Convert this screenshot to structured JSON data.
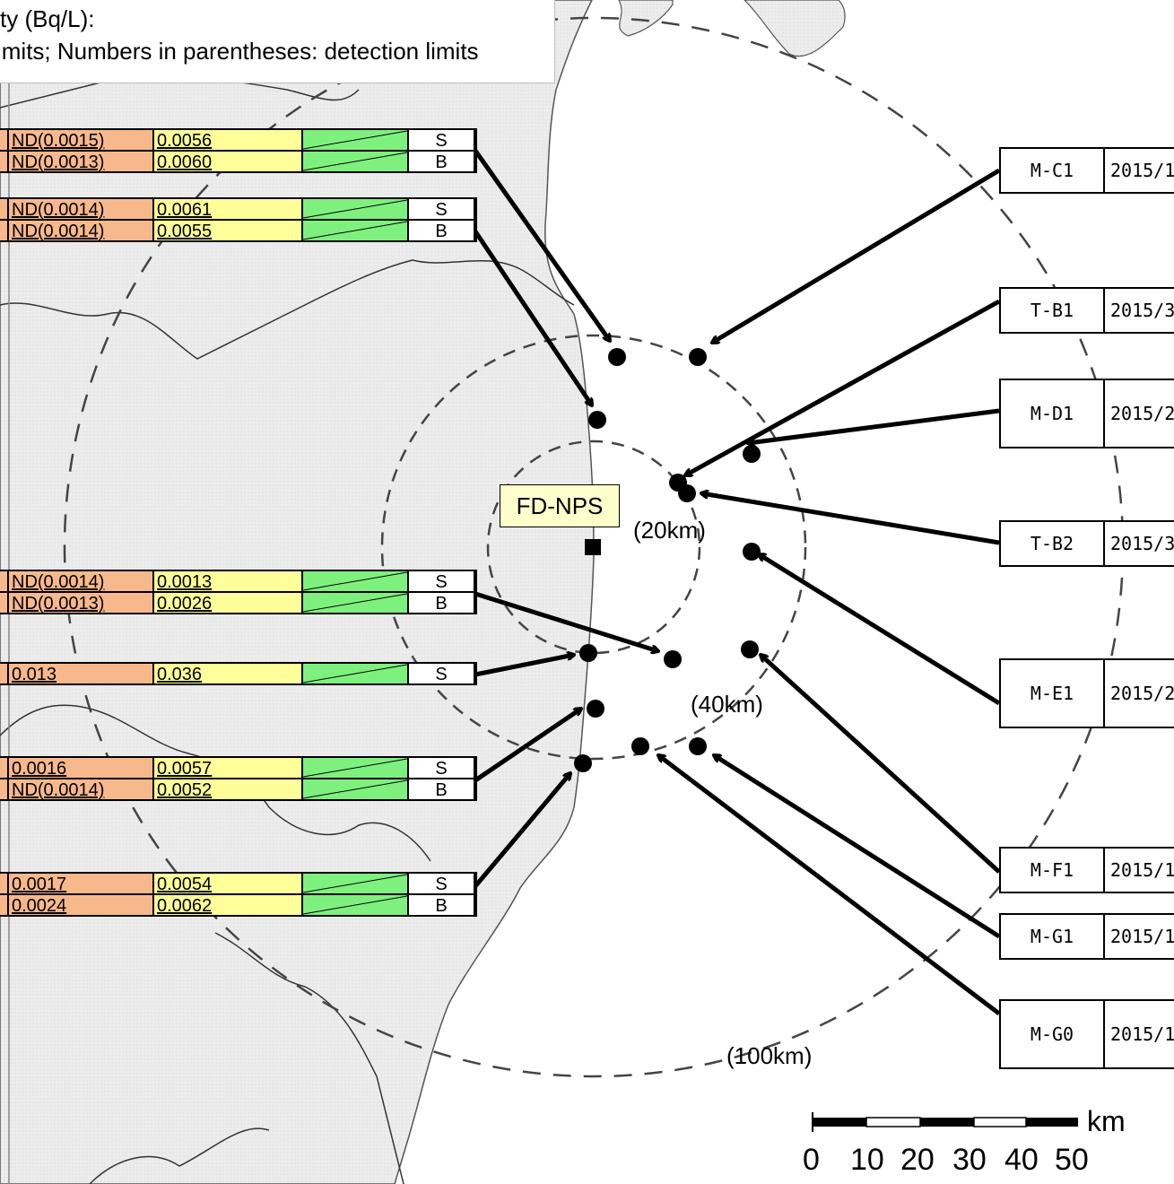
{
  "legend": {
    "line1": "ty (Bq/L):",
    "line2": "imits;    Numbers in parentheses: detection limits"
  },
  "plant": {
    "label": "FD-NPS"
  },
  "rings": [
    "(20km)",
    "(40km)",
    "(100km)"
  ],
  "scale": {
    "unit": "km",
    "ticks": [
      "0",
      "10",
      "20",
      "30",
      "40",
      "50"
    ]
  },
  "left_tables": [
    {
      "rows": [
        {
          "a": "ND(0.0015)",
          "b": "0.0056",
          "layer": "S"
        },
        {
          "a": "ND(0.0013)",
          "b": "0.0060",
          "layer": "B"
        }
      ]
    },
    {
      "rows": [
        {
          "a": "ND(0.0014)",
          "b": "0.0061",
          "layer": "S"
        },
        {
          "a": "ND(0.0014)",
          "b": "0.0055",
          "layer": "B"
        }
      ]
    },
    {
      "rows": [
        {
          "a": "ND(0.0014)",
          "b": "0.0013",
          "layer": "S"
        },
        {
          "a": "ND(0.0013)",
          "b": "0.0026",
          "layer": "B"
        }
      ]
    },
    {
      "rows": [
        {
          "a": "0.013",
          "b": "0.036",
          "layer": "S"
        }
      ]
    },
    {
      "rows": [
        {
          "a": "0.0016",
          "b": "0.0057",
          "layer": "S"
        },
        {
          "a": "ND(0.0014)",
          "b": "0.0052",
          "layer": "B"
        }
      ]
    },
    {
      "rows": [
        {
          "a": "0.0017",
          "b": "0.0054",
          "layer": "S"
        },
        {
          "a": "0.0024",
          "b": "0.0062",
          "layer": "B"
        }
      ]
    }
  ],
  "stations": [
    {
      "id": "M-C1",
      "date": "2015/1"
    },
    {
      "id": "T-B1",
      "date": "2015/3"
    },
    {
      "id": "M-D1",
      "date": "2015/2"
    },
    {
      "id": "T-B2",
      "date": "2015/3"
    },
    {
      "id": "M-E1",
      "date": "2015/2"
    },
    {
      "id": "M-F1",
      "date": "2015/1"
    },
    {
      "id": "M-G1",
      "date": "2015/1"
    },
    {
      "id": "M-G0",
      "date": "2015/1"
    }
  ],
  "colors": {
    "land": "#ececec",
    "sea": "#ffffff",
    "col_a": "#f7b98c",
    "col_b": "#ffff99",
    "col_c": "#7ef07e"
  }
}
